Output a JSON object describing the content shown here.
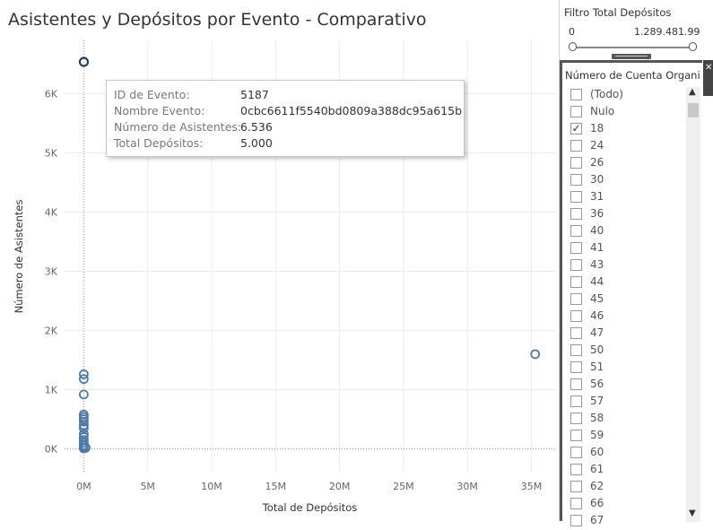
{
  "chart_title": "Asistentes y Depósitos por Evento - Comparativo",
  "tooltip": {
    "rows": [
      {
        "label": "ID de Evento:",
        "value": "5187"
      },
      {
        "label": "Nombre Evento:",
        "value": "0cbc6611f5540bd0809a388dc95a615b"
      },
      {
        "label": "Número de Asistentes:",
        "value": "6.536"
      },
      {
        "label": "Total Depósitos:",
        "value": "5.000"
      }
    ]
  },
  "chart_data": {
    "type": "scatter",
    "title": "Asistentes y Depósitos por Evento - Comparativo",
    "xlabel": "Total de Depósitos",
    "ylabel": "Número de Asistentes",
    "x_ticks": [
      "0M",
      "5M",
      "10M",
      "15M",
      "20M",
      "25M",
      "30M",
      "35M"
    ],
    "x_tick_values": [
      0,
      5000000,
      10000000,
      15000000,
      20000000,
      25000000,
      30000000,
      35000000
    ],
    "y_ticks": [
      "0K",
      "1K",
      "2K",
      "3K",
      "4K",
      "5K",
      "6K"
    ],
    "y_tick_values": [
      0,
      1000,
      2000,
      3000,
      4000,
      5000,
      6000
    ],
    "xlim": [
      -1500000,
      37000000
    ],
    "ylim": [
      -400,
      6900
    ],
    "grid": true,
    "marker_color": "#4e79a7",
    "points": [
      {
        "x": 5000,
        "y": 6536,
        "highlighted": true
      },
      {
        "x": 0,
        "y": 1260
      },
      {
        "x": 0,
        "y": 1180
      },
      {
        "x": 0,
        "y": 920
      },
      {
        "x": 0,
        "y": 580
      },
      {
        "x": 0,
        "y": 540
      },
      {
        "x": 0,
        "y": 500
      },
      {
        "x": 0,
        "y": 460
      },
      {
        "x": 0,
        "y": 400
      },
      {
        "x": 0,
        "y": 350
      },
      {
        "x": 0,
        "y": 250
      },
      {
        "x": 0,
        "y": 200
      },
      {
        "x": 0,
        "y": 150
      },
      {
        "x": 0,
        "y": 100
      },
      {
        "x": 0,
        "y": 60
      },
      {
        "x": 0,
        "y": 30
      },
      {
        "x": 0,
        "y": 10
      },
      {
        "x": 150000,
        "y": 20
      },
      {
        "x": 35300000,
        "y": 1600
      }
    ]
  },
  "filter_total": {
    "title": "Filtro Total Depósitos",
    "min": "0",
    "max": "1.289.481.99"
  },
  "account_filter": {
    "title": "Número de Cuenta Organi..",
    "items": [
      {
        "label": "(Todo)",
        "checked": false
      },
      {
        "label": "Nulo",
        "checked": false
      },
      {
        "label": "18",
        "checked": true
      },
      {
        "label": "24",
        "checked": false
      },
      {
        "label": "26",
        "checked": false
      },
      {
        "label": "30",
        "checked": false
      },
      {
        "label": "31",
        "checked": false
      },
      {
        "label": "36",
        "checked": false
      },
      {
        "label": "40",
        "checked": false
      },
      {
        "label": "41",
        "checked": false
      },
      {
        "label": "43",
        "checked": false
      },
      {
        "label": "44",
        "checked": false
      },
      {
        "label": "45",
        "checked": false
      },
      {
        "label": "46",
        "checked": false
      },
      {
        "label": "47",
        "checked": false
      },
      {
        "label": "50",
        "checked": false
      },
      {
        "label": "51",
        "checked": false
      },
      {
        "label": "56",
        "checked": false
      },
      {
        "label": "57",
        "checked": false
      },
      {
        "label": "58",
        "checked": false
      },
      {
        "label": "59",
        "checked": false
      },
      {
        "label": "60",
        "checked": false
      },
      {
        "label": "61",
        "checked": false
      },
      {
        "label": "62",
        "checked": false
      },
      {
        "label": "66",
        "checked": false
      },
      {
        "label": "67",
        "checked": false
      }
    ]
  },
  "icons": {
    "checkmark": "✓",
    "scroll_up": "chevron-up-icon",
    "scroll_down": "chevron-down-icon",
    "side_tab": "close-icon"
  }
}
